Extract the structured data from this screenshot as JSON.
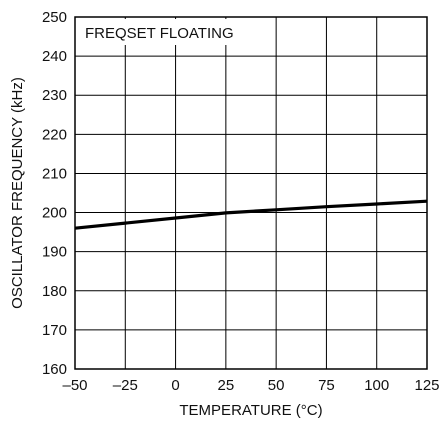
{
  "chart_data": {
    "type": "line",
    "title": "",
    "annotation": "FREQSET FLOATING",
    "xlabel": "TEMPERATURE (°C)",
    "ylabel": "OSCILLATOR FREQUENCY (kHz)",
    "xlim": [
      -50,
      125
    ],
    "ylim": [
      160,
      250
    ],
    "x_ticks": [
      -50,
      -25,
      0,
      25,
      50,
      75,
      100,
      125
    ],
    "x_tick_labels": [
      "–50",
      "–25",
      "0",
      "25",
      "50",
      "75",
      "100",
      "125"
    ],
    "y_ticks": [
      160,
      170,
      180,
      190,
      200,
      210,
      220,
      230,
      240,
      250
    ],
    "y_tick_labels": [
      "160",
      "170",
      "180",
      "190",
      "200",
      "210",
      "220",
      "230",
      "240",
      "250"
    ],
    "grid": true,
    "series": [
      {
        "x": [
          -50,
          -25,
          0,
          25,
          50,
          75,
          100,
          125
        ],
        "y": [
          196.0,
          197.3,
          198.6,
          199.9,
          200.7,
          201.5,
          202.2,
          202.9
        ]
      }
    ],
    "colors": {
      "line": "#000000",
      "grid": "#000000",
      "background": "#ffffff"
    }
  }
}
